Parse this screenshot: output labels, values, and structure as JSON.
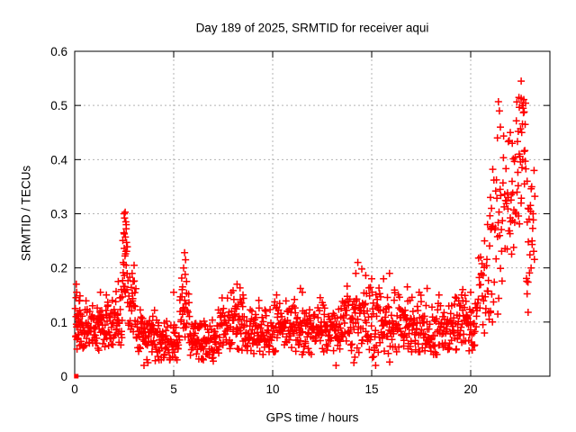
{
  "page": {
    "background": "#ffffff"
  },
  "chart_data": {
    "type": "scatter",
    "title": "Day 189 of 2025, SRMTID for receiver aqui",
    "xlabel": "GPS time / hours",
    "ylabel": "SRMTID / TECUs",
    "xlim": [
      0,
      24
    ],
    "ylim": [
      0,
      0.6
    ],
    "xticks": {
      "values": [
        0,
        5,
        10,
        15,
        20
      ],
      "labels": [
        "0",
        "5",
        "10",
        "15",
        "20"
      ]
    },
    "yticks": {
      "values": [
        0,
        0.1,
        0.2,
        0.3,
        0.4,
        0.5,
        0.6
      ],
      "labels": [
        "0",
        "0.1",
        "0.2",
        "0.3",
        "0.4",
        "0.5",
        "0.6"
      ]
    },
    "grid": true,
    "legend": "none",
    "marker": {
      "shape": "plus",
      "color": "#ff0000",
      "size": 8,
      "stroke_width": 1.5
    },
    "colors": {
      "axis": "#000000",
      "grid": "#b3b3b3",
      "text": "#000000",
      "background": "#ffffff"
    },
    "origin_point": {
      "x": 0.08,
      "y": 0.0,
      "shape": "filled-square"
    },
    "notable_points": [
      [
        0.08,
        0.17
      ],
      [
        0.1,
        0.155
      ],
      [
        0.07,
        0.145
      ],
      [
        0.12,
        0.05
      ],
      [
        0.25,
        0.14
      ],
      [
        0.9,
        0.13
      ],
      [
        1.3,
        0.155
      ],
      [
        1.6,
        0.15
      ],
      [
        1.9,
        0.14
      ],
      [
        2.2,
        0.175
      ],
      [
        2.35,
        0.16
      ],
      [
        2.55,
        0.303
      ],
      [
        2.5,
        0.3
      ],
      [
        2.52,
        0.292
      ],
      [
        2.58,
        0.285
      ],
      [
        2.6,
        0.272
      ],
      [
        2.48,
        0.265
      ],
      [
        2.56,
        0.257
      ],
      [
        2.62,
        0.247
      ],
      [
        2.5,
        0.236
      ],
      [
        2.54,
        0.222
      ],
      [
        2.45,
        0.21
      ],
      [
        2.6,
        0.205
      ],
      [
        2.9,
        0.19
      ],
      [
        3.0,
        0.205
      ],
      [
        2.95,
        0.175
      ],
      [
        3.5,
        0.02
      ],
      [
        3.7,
        0.025
      ],
      [
        5.0,
        0.155
      ],
      [
        5.55,
        0.228
      ],
      [
        5.6,
        0.215
      ],
      [
        5.5,
        0.2
      ],
      [
        5.58,
        0.188
      ],
      [
        5.65,
        0.175
      ],
      [
        5.45,
        0.165
      ],
      [
        6.5,
        0.03
      ],
      [
        7.0,
        0.028
      ],
      [
        8.2,
        0.17
      ],
      [
        8.35,
        0.163
      ],
      [
        8.0,
        0.158
      ],
      [
        8.5,
        0.15
      ],
      [
        9.3,
        0.14
      ],
      [
        10.2,
        0.15
      ],
      [
        11.4,
        0.162
      ],
      [
        11.5,
        0.155
      ],
      [
        12.4,
        0.145
      ],
      [
        13.2,
        0.02
      ],
      [
        14.1,
        0.025
      ],
      [
        14.15,
        0.035
      ],
      [
        14.3,
        0.21
      ],
      [
        14.5,
        0.198
      ],
      [
        14.2,
        0.19
      ],
      [
        14.7,
        0.186
      ],
      [
        15.0,
        0.18
      ],
      [
        15.9,
        0.19
      ],
      [
        15.6,
        0.18
      ],
      [
        15.2,
        0.02
      ],
      [
        16.8,
        0.165
      ],
      [
        17.8,
        0.162
      ],
      [
        18.4,
        0.15
      ],
      [
        19.6,
        0.16
      ],
      [
        20.0,
        0.155
      ],
      [
        20.5,
        0.22
      ],
      [
        20.7,
        0.25
      ],
      [
        20.85,
        0.28
      ],
      [
        21.0,
        0.33
      ],
      [
        21.05,
        0.31
      ],
      [
        21.0,
        0.12
      ],
      [
        21.1,
        0.1
      ],
      [
        21.4,
        0.507
      ],
      [
        21.45,
        0.49
      ],
      [
        21.5,
        0.46
      ],
      [
        21.35,
        0.44
      ],
      [
        22.0,
        0.45
      ],
      [
        22.1,
        0.43
      ],
      [
        21.9,
        0.33
      ],
      [
        22.05,
        0.335
      ],
      [
        22.55,
        0.545
      ],
      [
        22.55,
        0.513
      ],
      [
        22.6,
        0.5
      ],
      [
        22.65,
        0.495
      ],
      [
        22.7,
        0.488
      ],
      [
        22.75,
        0.465
      ],
      [
        22.4,
        0.452
      ],
      [
        22.45,
        0.41
      ],
      [
        22.85,
        0.36
      ],
      [
        22.9,
        0.31
      ],
      [
        22.95,
        0.29
      ],
      [
        23.1,
        0.25
      ],
      [
        23.05,
        0.2
      ],
      [
        22.85,
        0.152
      ],
      [
        22.9,
        0.118
      ],
      [
        23.2,
        0.38
      ],
      [
        23.15,
        0.3
      ]
    ],
    "band_profile": {
      "description": "Dense minute-cadence scatter band; segments are [x_start_h, x_end_h, n_points, y_center, y_halfwidth, y_min, y_max] read from the plotted cloud.",
      "segments": [
        [
          0.03,
          0.3,
          22,
          0.1,
          0.05,
          0.05,
          0.17
        ],
        [
          0.3,
          1.0,
          45,
          0.085,
          0.045,
          0.04,
          0.155
        ],
        [
          1.0,
          2.0,
          62,
          0.09,
          0.05,
          0.04,
          0.16
        ],
        [
          2.0,
          2.4,
          26,
          0.1,
          0.05,
          0.05,
          0.175
        ],
        [
          2.4,
          2.7,
          20,
          0.2,
          0.07,
          0.1,
          0.305
        ],
        [
          2.7,
          3.1,
          26,
          0.125,
          0.05,
          0.06,
          0.205
        ],
        [
          3.1,
          4.2,
          68,
          0.075,
          0.04,
          0.025,
          0.14
        ],
        [
          4.2,
          5.3,
          66,
          0.065,
          0.035,
          0.03,
          0.125
        ],
        [
          5.3,
          5.8,
          28,
          0.115,
          0.06,
          0.05,
          0.225
        ],
        [
          5.8,
          7.2,
          82,
          0.065,
          0.033,
          0.028,
          0.115
        ],
        [
          7.2,
          8.6,
          82,
          0.092,
          0.05,
          0.04,
          0.168
        ],
        [
          8.6,
          9.6,
          58,
          0.08,
          0.042,
          0.04,
          0.14
        ],
        [
          9.6,
          11.0,
          80,
          0.09,
          0.045,
          0.045,
          0.155
        ],
        [
          11.0,
          12.2,
          70,
          0.085,
          0.047,
          0.04,
          0.16
        ],
        [
          12.2,
          13.5,
          75,
          0.085,
          0.045,
          0.04,
          0.15
        ],
        [
          13.5,
          14.8,
          74,
          0.108,
          0.058,
          0.03,
          0.205
        ],
        [
          14.8,
          16.2,
          80,
          0.1,
          0.06,
          0.02,
          0.19
        ],
        [
          16.2,
          17.6,
          80,
          0.093,
          0.05,
          0.045,
          0.17
        ],
        [
          17.6,
          19.0,
          76,
          0.082,
          0.045,
          0.04,
          0.15
        ],
        [
          19.0,
          20.3,
          74,
          0.096,
          0.05,
          0.03,
          0.17
        ],
        [
          20.3,
          20.9,
          26,
          0.15,
          0.08,
          0.06,
          0.29
        ],
        [
          20.9,
          21.6,
          32,
          0.25,
          0.13,
          0.1,
          0.5
        ],
        [
          21.6,
          22.3,
          34,
          0.33,
          0.1,
          0.2,
          0.47
        ],
        [
          22.3,
          22.8,
          28,
          0.4,
          0.11,
          0.25,
          0.545
        ],
        [
          22.8,
          23.25,
          18,
          0.28,
          0.1,
          0.12,
          0.51
        ]
      ]
    }
  }
}
